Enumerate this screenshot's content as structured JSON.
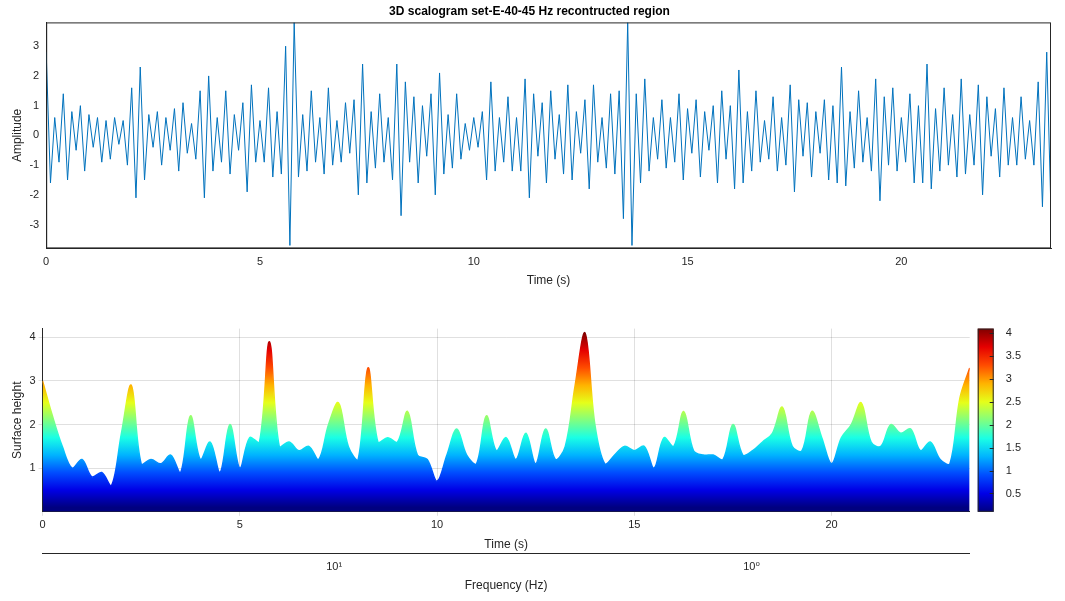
{
  "chart_data": [
    {
      "type": "line",
      "title": "3D scalogram set-E-40-45 Hz recontructed region",
      "x_label": "Time (s)",
      "y_label": "Amplitude",
      "color": "#0072bd",
      "grid": false,
      "xlim": [
        0,
        23.5
      ],
      "xticks": [
        0,
        5,
        10,
        15,
        20
      ],
      "ylim": [
        -3.8,
        3.8
      ],
      "yticks": [
        -3,
        -2,
        -1,
        0,
        1,
        2,
        3
      ],
      "x": [
        0,
        0.1,
        0.2,
        0.3,
        0.4,
        0.5,
        0.6,
        0.7,
        0.8,
        0.9,
        1,
        1.1,
        1.2,
        1.3,
        1.4,
        1.5,
        1.6,
        1.7,
        1.8,
        1.9,
        2,
        2.1,
        2.2,
        2.3,
        2.4,
        2.5,
        2.6,
        2.7,
        2.8,
        2.9,
        3,
        3.1,
        3.2,
        3.3,
        3.4,
        3.5,
        3.6,
        3.7,
        3.8,
        3.9,
        4,
        4.1,
        4.2,
        4.3,
        4.4,
        4.5,
        4.6,
        4.7,
        4.8,
        4.9,
        5,
        5.1,
        5.2,
        5.3,
        5.4,
        5.5,
        5.6,
        5.7,
        5.8,
        5.9,
        6,
        6.1,
        6.2,
        6.3,
        6.4,
        6.5,
        6.6,
        6.7,
        6.8,
        6.9,
        7,
        7.1,
        7.2,
        7.3,
        7.4,
        7.5,
        7.6,
        7.7,
        7.8,
        7.9,
        8,
        8.1,
        8.2,
        8.3,
        8.4,
        8.5,
        8.6,
        8.7,
        8.8,
        8.9,
        9,
        9.1,
        9.2,
        9.3,
        9.4,
        9.5,
        9.6,
        9.7,
        9.8,
        9.9,
        10,
        10.1,
        10.2,
        10.3,
        10.4,
        10.5,
        10.6,
        10.7,
        10.8,
        10.9,
        11,
        11.1,
        11.2,
        11.3,
        11.4,
        11.5,
        11.6,
        11.7,
        11.8,
        11.9,
        12,
        12.1,
        12.2,
        12.3,
        12.4,
        12.5,
        12.6,
        12.7,
        12.8,
        12.9,
        13,
        13.1,
        13.2,
        13.3,
        13.4,
        13.5,
        13.6,
        13.7,
        13.8,
        13.9,
        14,
        14.1,
        14.2,
        14.3,
        14.4,
        14.5,
        14.6,
        14.7,
        14.8,
        14.9,
        15,
        15.1,
        15.2,
        15.3,
        15.4,
        15.5,
        15.6,
        15.7,
        15.8,
        15.9,
        16,
        16.1,
        16.2,
        16.3,
        16.4,
        16.5,
        16.6,
        16.7,
        16.8,
        16.9,
        17,
        17.1,
        17.2,
        17.3,
        17.4,
        17.5,
        17.6,
        17.7,
        17.8,
        17.9,
        18,
        18.1,
        18.2,
        18.3,
        18.4,
        18.5,
        18.6,
        18.7,
        18.8,
        18.9,
        19,
        19.1,
        19.2,
        19.3,
        19.4,
        19.5,
        19.6,
        19.7,
        19.8,
        19.9,
        20,
        20.1,
        20.2,
        20.3,
        20.4,
        20.5,
        20.6,
        20.7,
        20.8,
        20.9,
        21,
        21.1,
        21.2,
        21.3,
        21.4,
        21.5,
        21.6,
        21.7,
        21.8,
        21.9,
        22,
        22.1,
        22.2,
        22.3,
        22.4,
        22.5,
        22.6,
        22.7,
        22.8,
        22.9,
        23,
        23.1,
        23.2,
        23.3,
        23.4,
        23.5
      ],
      "values": [
        2.8,
        -1.6,
        0.6,
        -0.9,
        1.4,
        -1.5,
        0.8,
        -0.5,
        1.0,
        -1.2,
        0.7,
        -0.4,
        0.6,
        -0.9,
        0.5,
        -0.8,
        0.6,
        -0.3,
        0.5,
        -1.0,
        1.6,
        -2.1,
        2.3,
        -1.5,
        0.7,
        -0.4,
        0.8,
        -1.0,
        0.6,
        -0.5,
        0.9,
        -1.2,
        1.1,
        -0.6,
        0.4,
        -0.8,
        1.5,
        -2.1,
        2.0,
        -1.2,
        0.6,
        -0.9,
        1.5,
        -1.3,
        0.7,
        -0.5,
        1.1,
        -1.9,
        1.7,
        -0.9,
        0.5,
        -0.9,
        1.6,
        -1.4,
        0.8,
        -1.3,
        3.0,
        -3.7,
        3.8,
        -1.4,
        0.7,
        -1.2,
        1.5,
        -0.9,
        0.6,
        -1.3,
        1.6,
        -1.0,
        0.5,
        -0.9,
        1.1,
        -0.6,
        1.2,
        -2.0,
        2.4,
        -1.6,
        0.8,
        -1.1,
        1.4,
        -0.9,
        0.6,
        -1.5,
        2.4,
        -2.7,
        1.8,
        -0.9,
        1.3,
        -1.6,
        1.0,
        -0.7,
        1.4,
        -2.0,
        2.1,
        -1.3,
        0.7,
        -1.1,
        1.4,
        -0.8,
        0.4,
        -0.5,
        0.6,
        -0.4,
        0.8,
        -1.5,
        1.8,
        -1.2,
        0.6,
        -0.9,
        1.3,
        -1.2,
        0.6,
        -1.2,
        1.9,
        -2.1,
        1.4,
        -0.7,
        1.1,
        -1.6,
        1.5,
        -0.8,
        0.7,
        -1.3,
        1.7,
        -1.5,
        0.8,
        -0.6,
        1.2,
        -1.8,
        1.7,
        -0.9,
        0.6,
        -1.1,
        1.4,
        -1.3,
        1.5,
        -2.8,
        3.8,
        -3.7,
        1.4,
        -1.6,
        1.9,
        -1.2,
        0.6,
        -0.8,
        1.2,
        -1.1,
        0.6,
        -0.9,
        1.4,
        -1.5,
        0.9,
        -0.6,
        1.2,
        -1.4,
        0.8,
        -0.5,
        1.0,
        -1.6,
        1.5,
        -0.8,
        1.0,
        -1.8,
        2.2,
        -1.6,
        0.8,
        -1.2,
        1.5,
        -0.9,
        0.5,
        -0.8,
        1.3,
        -1.2,
        0.6,
        -1.0,
        1.7,
        -1.9,
        1.2,
        -0.7,
        1.1,
        -1.4,
        0.8,
        -0.6,
        1.2,
        -1.5,
        1.0,
        -1.6,
        2.3,
        -1.7,
        0.8,
        -1.1,
        1.5,
        -0.9,
        0.6,
        -1.2,
        1.9,
        -2.2,
        1.3,
        -1.0,
        1.6,
        -1.2,
        0.6,
        -0.9,
        1.4,
        -1.6,
        1.0,
        -1.6,
        2.4,
        -1.8,
        0.9,
        -1.2,
        1.6,
        -1.0,
        0.7,
        -1.4,
        1.9,
        -1.3,
        0.7,
        -1.0,
        1.7,
        -2.0,
        1.3,
        -0.7,
        0.9,
        -1.4,
        1.6,
        -1.0,
        0.6,
        -1.0,
        1.3,
        -0.8,
        0.5,
        -1.0,
        1.8,
        -2.4,
        2.8,
        -2.6
      ]
    },
    {
      "type": "area",
      "x_label": "Time (s)",
      "y_label": "Surface height",
      "grid": true,
      "xlim": [
        0,
        23.5
      ],
      "xticks": [
        0,
        5,
        10,
        15,
        20
      ],
      "ylim": [
        0,
        4.2
      ],
      "yticks": [
        1,
        2,
        3,
        4
      ],
      "frequency_axis": {
        "label": "Frequency (Hz)",
        "log": true,
        "lim": [
          0.3,
          50
        ],
        "ticks": [
          {
            "value": 1,
            "label": "10⁰"
          },
          {
            "value": 10,
            "label": "10¹"
          }
        ]
      },
      "colorbar": {
        "range": [
          0.1,
          4.1
        ],
        "ticks": [
          0.5,
          1,
          1.5,
          2,
          2.5,
          3,
          3.5,
          4
        ]
      },
      "x": [
        0,
        0.25,
        0.5,
        0.75,
        1,
        1.25,
        1.5,
        1.75,
        2,
        2.25,
        2.5,
        2.75,
        3,
        3.25,
        3.5,
        3.75,
        4,
        4.25,
        4.5,
        4.75,
        5,
        5.25,
        5.5,
        5.75,
        6,
        6.25,
        6.5,
        6.75,
        7,
        7.25,
        7.5,
        7.75,
        8,
        8.25,
        8.5,
        8.75,
        9,
        9.25,
        9.5,
        9.75,
        10,
        10.25,
        10.5,
        10.75,
        11,
        11.25,
        11.5,
        11.75,
        12,
        12.25,
        12.5,
        12.75,
        13,
        13.25,
        13.5,
        13.75,
        14,
        14.25,
        14.5,
        14.75,
        15,
        15.25,
        15.5,
        15.75,
        16,
        16.25,
        16.5,
        16.75,
        17,
        17.25,
        17.5,
        17.75,
        18,
        18.25,
        18.5,
        18.75,
        19,
        19.25,
        19.5,
        19.75,
        20,
        20.25,
        20.5,
        20.75,
        21,
        21.25,
        21.5,
        21.75,
        22,
        22.25,
        22.5,
        22.75,
        23,
        23.25,
        23.5
      ],
      "values": [
        3.0,
        2.2,
        1.5,
        1.0,
        1.2,
        0.8,
        0.9,
        0.6,
        1.8,
        2.9,
        1.1,
        1.2,
        1.1,
        1.3,
        0.9,
        2.2,
        1.2,
        1.6,
        0.9,
        2.0,
        1.0,
        1.7,
        1.6,
        3.9,
        1.5,
        1.6,
        1.4,
        1.5,
        1.2,
        2.0,
        2.5,
        1.5,
        1.2,
        3.3,
        1.6,
        1.7,
        1.6,
        2.3,
        1.3,
        1.2,
        0.7,
        1.3,
        1.9,
        1.3,
        1.1,
        2.2,
        1.4,
        1.7,
        1.2,
        1.8,
        1.1,
        1.9,
        1.2,
        1.5,
        2.9,
        4.1,
        2.0,
        1.1,
        1.3,
        1.5,
        1.4,
        1.5,
        1.0,
        1.7,
        1.5,
        2.3,
        1.4,
        1.3,
        1.3,
        1.2,
        2.0,
        1.3,
        1.4,
        1.6,
        1.8,
        2.4,
        1.5,
        1.4,
        2.3,
        1.7,
        1.1,
        1.7,
        2.0,
        2.5,
        1.6,
        1.5,
        2.0,
        1.8,
        1.9,
        1.4,
        1.6,
        1.2,
        1.1,
        2.6,
        3.3
      ]
    }
  ]
}
